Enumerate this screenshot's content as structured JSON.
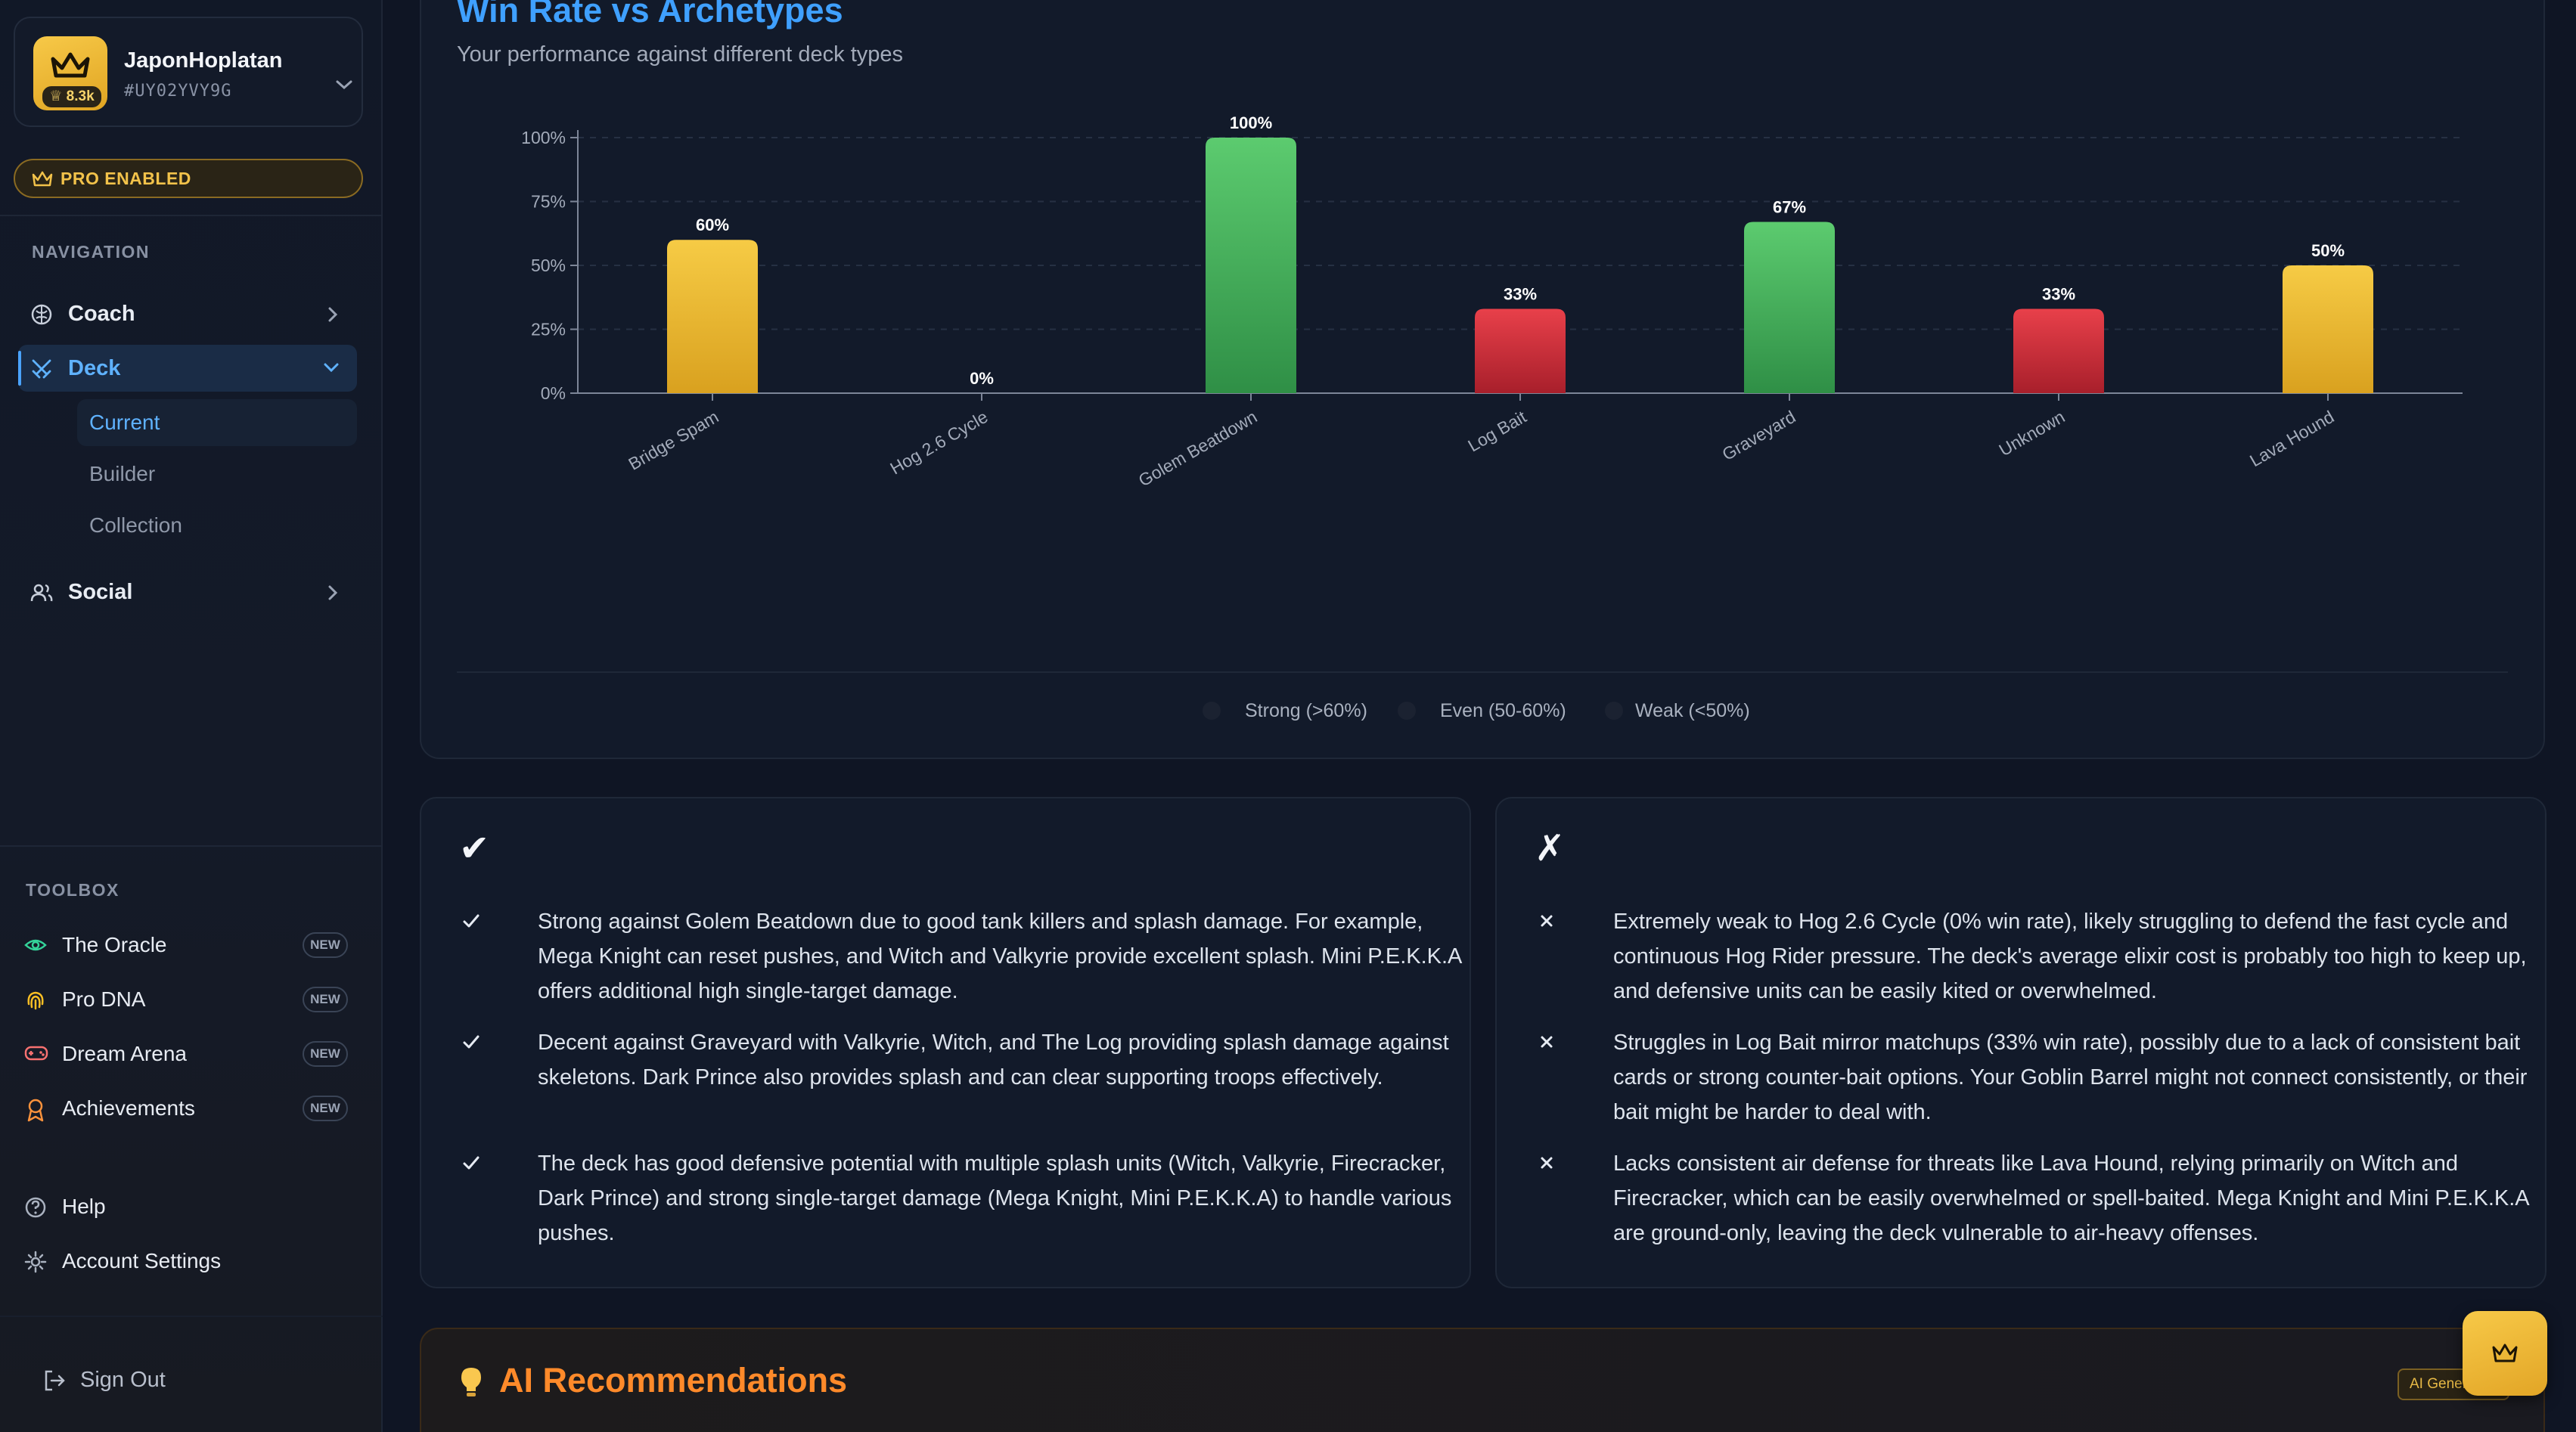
{
  "profile": {
    "name": "JaponHoplatan",
    "tag": "#UY02YVY9G",
    "trophies": "8.3k"
  },
  "pro_label": "PRO ENABLED",
  "navigation": {
    "heading": "NAVIGATION",
    "items": [
      {
        "label": "Coach",
        "icon": "brain-icon"
      },
      {
        "label": "Deck",
        "icon": "swords-icon"
      },
      {
        "label": "Social",
        "icon": "users-icon"
      }
    ],
    "deck_sub": [
      "Current",
      "Builder",
      "Collection"
    ]
  },
  "toolbox": {
    "heading": "TOOLBOX",
    "items": [
      {
        "label": "The Oracle",
        "badge": "NEW",
        "icon": "eye-icon",
        "color": "#34d399"
      },
      {
        "label": "Pro DNA",
        "badge": "NEW",
        "icon": "fingerprint-icon",
        "color": "#fbbf24"
      },
      {
        "label": "Dream Arena",
        "badge": "NEW",
        "icon": "gamepad-icon",
        "color": "#f87171"
      },
      {
        "label": "Achievements",
        "badge": "NEW",
        "icon": "award-icon",
        "color": "#fb923c"
      }
    ]
  },
  "footer": {
    "help": "Help",
    "settings": "Account Settings",
    "signout": "Sign Out"
  },
  "chart_section": {
    "title": "Win Rate vs Archetypes",
    "subtitle": "Your performance against different deck types",
    "legend": [
      {
        "label": "Strong (>60%)"
      },
      {
        "label": "Even (50-60%)"
      },
      {
        "label": "Weak (<50%)"
      }
    ]
  },
  "chart_data": {
    "type": "bar",
    "categories": [
      "Bridge Spam",
      "Hog 2.6 Cycle",
      "Golem Beatdown",
      "Log Bait",
      "Graveyard",
      "Unknown",
      "Lava Hound"
    ],
    "values": [
      60,
      0,
      100,
      33,
      67,
      33,
      50
    ],
    "value_labels": [
      "60%",
      "0%",
      "100%",
      "33%",
      "67%",
      "33%",
      "50%"
    ],
    "yticks": [
      "0%",
      "25%",
      "50%",
      "75%",
      "100%"
    ],
    "ylim": [
      0,
      100
    ],
    "grid": true,
    "colors": {
      "strong": "#4cc463",
      "even": "#f1c232",
      "weak": "#e23a44"
    }
  },
  "strengths": {
    "mark": "✔",
    "items": [
      "Strong against Golem Beatdown due to good tank killers and splash damage. For example, Mega Knight can reset pushes, and Witch and Valkyrie provide excellent splash. Mini P.E.K.K.A offers additional high single-target damage.",
      "Decent against Graveyard with Valkyrie, Witch, and The Log providing splash damage against skeletons. Dark Prince also provides splash and can clear supporting troops effectively.",
      "The deck has good defensive potential with multiple splash units (Witch, Valkyrie, Firecracker, Dark Prince) and strong single-target damage (Mega Knight, Mini P.E.K.K.A) to handle various pushes."
    ]
  },
  "weaknesses": {
    "mark": "✗",
    "items": [
      "Extremely weak to Hog 2.6 Cycle (0% win rate), likely struggling to defend the fast cycle and continuous Hog Rider pressure. The deck's average elixir cost is probably too high to keep up, and defensive units can be easily kited or overwhelmed.",
      "Struggles in Log Bait mirror matchups (33% win rate), possibly due to a lack of consistent bait cards or strong counter-bait options. Your Goblin Barrel might not connect consistently, or their bait might be harder to deal with.",
      "Lacks consistent air defense for threats like Lava Hound, relying primarily on Witch and Firecracker, which can be easily overwhelmed or spell-baited. Mega Knight and Mini P.E.K.K.A are ground-only, leaving the deck vulnerable to air-heavy offenses."
    ]
  },
  "recommendations": {
    "title": "AI Recommendations",
    "badge": "AI Generated"
  }
}
